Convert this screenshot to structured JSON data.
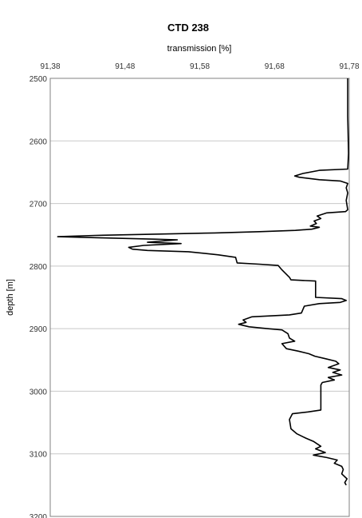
{
  "chart_data": {
    "type": "line",
    "title": "CTD 238",
    "xlabel": "transmission [%]",
    "ylabel": "depth [m]",
    "x_axis_position": "top",
    "y_axis_inverted": true,
    "xlim": [
      91.38,
      91.78
    ],
    "ylim": [
      2500,
      3200
    ],
    "xticks": [
      91.38,
      91.48,
      91.58,
      91.68,
      91.78
    ],
    "xtick_labels": [
      "91,38",
      "91,48",
      "91,58",
      "91,68",
      "91,78"
    ],
    "yticks": [
      2500,
      2600,
      2700,
      2800,
      2900,
      3000,
      3100,
      3200
    ],
    "ytick_labels": [
      "2500",
      "2600",
      "2700",
      "2800",
      "2900",
      "3000",
      "3100",
      "3200"
    ],
    "grid": true,
    "series": [
      {
        "name": "",
        "points": [
          [
            91.778,
            2500
          ],
          [
            91.778,
            2560
          ],
          [
            91.779,
            2620
          ],
          [
            91.778,
            2645
          ],
          [
            91.74,
            2647
          ],
          [
            91.718,
            2652
          ],
          [
            91.707,
            2656
          ],
          [
            91.713,
            2658
          ],
          [
            91.74,
            2662
          ],
          [
            91.768,
            2664
          ],
          [
            91.778,
            2668
          ],
          [
            91.776,
            2675
          ],
          [
            91.778,
            2683
          ],
          [
            91.776,
            2695
          ],
          [
            91.778,
            2710
          ],
          [
            91.775,
            2713
          ],
          [
            91.75,
            2715
          ],
          [
            91.737,
            2720
          ],
          [
            91.742,
            2724
          ],
          [
            91.733,
            2728
          ],
          [
            91.736,
            2732
          ],
          [
            91.728,
            2736
          ],
          [
            91.74,
            2738
          ],
          [
            91.73,
            2741
          ],
          [
            91.708,
            2743
          ],
          [
            91.66,
            2745
          ],
          [
            91.6,
            2747
          ],
          [
            91.52,
            2749
          ],
          [
            91.44,
            2751
          ],
          [
            91.39,
            2753
          ],
          [
            91.45,
            2755
          ],
          [
            91.52,
            2757
          ],
          [
            91.55,
            2758
          ],
          [
            91.53,
            2760
          ],
          [
            91.51,
            2762
          ],
          [
            91.555,
            2764
          ],
          [
            91.505,
            2767
          ],
          [
            91.485,
            2770
          ],
          [
            91.49,
            2773
          ],
          [
            91.51,
            2775
          ],
          [
            91.565,
            2777
          ],
          [
            91.605,
            2782
          ],
          [
            91.628,
            2786
          ],
          [
            91.63,
            2795
          ],
          [
            91.66,
            2797
          ],
          [
            91.685,
            2799
          ],
          [
            91.69,
            2806
          ],
          [
            91.7,
            2818
          ],
          [
            91.702,
            2822
          ],
          [
            91.735,
            2824
          ],
          [
            91.735,
            2850
          ],
          [
            91.77,
            2852
          ],
          [
            91.776,
            2855
          ],
          [
            91.768,
            2858
          ],
          [
            91.74,
            2860
          ],
          [
            91.72,
            2864
          ],
          [
            91.716,
            2875
          ],
          [
            91.7,
            2878
          ],
          [
            91.65,
            2881
          ],
          [
            91.638,
            2886
          ],
          [
            91.642,
            2890
          ],
          [
            91.632,
            2893
          ],
          [
            91.646,
            2897
          ],
          [
            91.67,
            2900
          ],
          [
            91.69,
            2902
          ],
          [
            91.698,
            2908
          ],
          [
            91.7,
            2915
          ],
          [
            91.707,
            2920
          ],
          [
            91.69,
            2924
          ],
          [
            91.696,
            2932
          ],
          [
            91.712,
            2936
          ],
          [
            91.726,
            2940
          ],
          [
            91.734,
            2944
          ],
          [
            91.748,
            2948
          ],
          [
            91.762,
            2952
          ],
          [
            91.766,
            2956
          ],
          [
            91.752,
            2962
          ],
          [
            91.768,
            2966
          ],
          [
            91.758,
            2970
          ],
          [
            91.77,
            2974
          ],
          [
            91.752,
            2978
          ],
          [
            91.76,
            2982
          ],
          [
            91.744,
            2986
          ],
          [
            91.742,
            2990
          ],
          [
            91.742,
            3030
          ],
          [
            91.725,
            3033
          ],
          [
            91.704,
            3036
          ],
          [
            91.7,
            3045
          ],
          [
            91.702,
            3060
          ],
          [
            91.71,
            3068
          ],
          [
            91.722,
            3075
          ],
          [
            91.732,
            3080
          ],
          [
            91.742,
            3088
          ],
          [
            91.735,
            3092
          ],
          [
            91.748,
            3098
          ],
          [
            91.732,
            3102
          ],
          [
            91.75,
            3106
          ],
          [
            91.764,
            3110
          ],
          [
            91.76,
            3115
          ],
          [
            91.77,
            3120
          ],
          [
            91.772,
            3125
          ],
          [
            91.77,
            3132
          ],
          [
            91.777,
            3140
          ],
          [
            91.774,
            3146
          ],
          [
            91.776,
            3150
          ]
        ]
      }
    ]
  }
}
